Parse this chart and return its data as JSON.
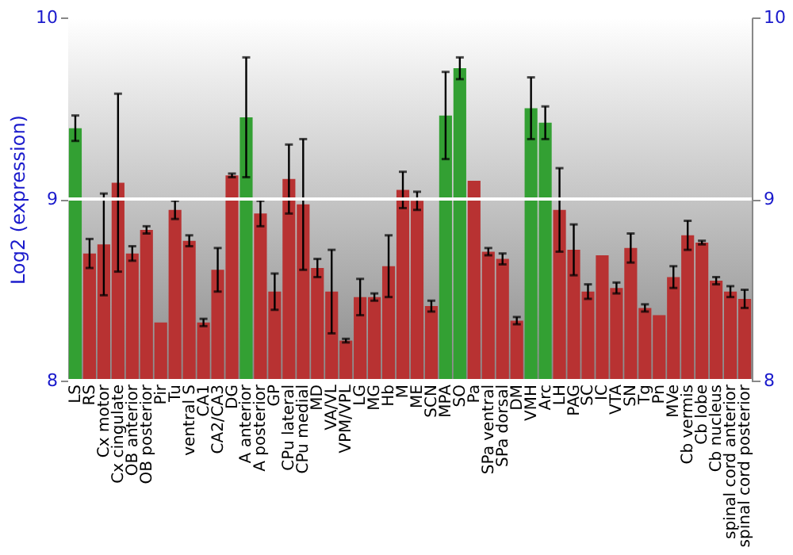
{
  "chart_data": {
    "type": "bar",
    "ylabel": "Log2 (expression)",
    "categories": [
      "LS",
      "RS",
      "Cx motor",
      "Cx cingulate",
      "OB anterior",
      "OB posterior",
      "Pir",
      "Tu",
      "ventral S",
      "CA1",
      "CA2/CA3",
      "DG",
      "A anterior",
      "A posterior",
      "GP",
      "CPu lateral",
      "CPu medial",
      "MD",
      "VA/VL",
      "VPM/VPL",
      "LG",
      "MG",
      "Hb",
      "M",
      "ME",
      "SCN",
      "MPA",
      "SO",
      "Pa",
      "SPa ventral",
      "SPa dorsal",
      "DM",
      "VMH",
      "Arc",
      "LH",
      "PAG",
      "SC",
      "IC",
      "VTA",
      "SN",
      "Tg",
      "Pn",
      "MVe",
      "Cb vermis",
      "Cb lobe",
      "Cb nucleus",
      "spinal cord anterior",
      "spinal cord posterior"
    ],
    "values": [
      9.39,
      8.7,
      8.75,
      9.09,
      8.7,
      8.83,
      8.32,
      8.94,
      8.77,
      8.32,
      8.61,
      9.13,
      9.45,
      8.92,
      8.49,
      9.11,
      8.97,
      8.62,
      8.49,
      8.22,
      8.46,
      8.46,
      8.63,
      9.05,
      8.99,
      8.41,
      9.46,
      9.72,
      9.1,
      8.71,
      8.67,
      8.33,
      9.5,
      9.42,
      8.94,
      8.72,
      8.49,
      8.69,
      8.51,
      8.73,
      8.4,
      8.36,
      8.57,
      8.8,
      8.76,
      8.55,
      8.49,
      8.45
    ],
    "errors": [
      0.07,
      0.08,
      0.28,
      0.49,
      0.04,
      0.02,
      null,
      0.05,
      0.03,
      0.02,
      0.12,
      0.01,
      0.33,
      0.07,
      0.1,
      0.19,
      0.36,
      0.05,
      0.23,
      0.01,
      0.1,
      0.02,
      0.17,
      0.1,
      0.05,
      0.03,
      0.24,
      0.06,
      null,
      0.02,
      0.03,
      0.02,
      0.17,
      0.09,
      0.23,
      0.14,
      0.04,
      null,
      0.03,
      0.08,
      0.02,
      null,
      0.06,
      0.08,
      0.01,
      0.02,
      0.03,
      0.05
    ],
    "colors": [
      "#33a033",
      "#b83232",
      "#b83232",
      "#b83232",
      "#b83232",
      "#b83232",
      "#b83232",
      "#b83232",
      "#b83232",
      "#b83232",
      "#b83232",
      "#b83232",
      "#33a033",
      "#b83232",
      "#b83232",
      "#b83232",
      "#b83232",
      "#b83232",
      "#b83232",
      "#b83232",
      "#b83232",
      "#b83232",
      "#b83232",
      "#b83232",
      "#b83232",
      "#b83232",
      "#33a033",
      "#33a033",
      "#b83232",
      "#b83232",
      "#b83232",
      "#b83232",
      "#33a033",
      "#33a033",
      "#b83232",
      "#b83232",
      "#b83232",
      "#b83232",
      "#b83232",
      "#b83232",
      "#b83232",
      "#b83232",
      "#b83232",
      "#b83232",
      "#b83232",
      "#b83232",
      "#b83232",
      "#b83232"
    ],
    "ylim": [
      8,
      10
    ],
    "yticks": [
      8,
      9,
      10
    ],
    "y2lim": [
      8,
      10
    ],
    "y2ticks": [
      8,
      9,
      10
    ],
    "grid": "y"
  }
}
